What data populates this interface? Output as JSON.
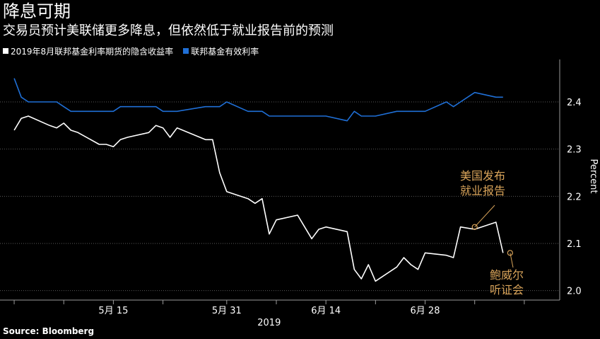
{
  "header": {
    "title": "降息可期",
    "subtitle": "交易员预计美联储更多降息，但依然低于就业报告前的预测"
  },
  "legend": [
    {
      "label": "2019年8月联邦基金利率期货的隐含收益率",
      "color": "#ffffff"
    },
    {
      "label": "联邦基金有效利率",
      "color": "#1f6fd6"
    }
  ],
  "source": "Source: Bloomberg",
  "chart_data": {
    "type": "line",
    "title": "降息可期",
    "subtitle": "交易员预计美联储更多降息，但依然低于就业报告前的预测",
    "x_tick_labels": [
      "5月 15",
      "5月 31",
      "6月 14",
      "6月 28"
    ],
    "x_year_label": "2019",
    "ylabel": "Percent",
    "y_ticks": [
      2.0,
      2.1,
      2.2,
      2.3,
      2.4
    ],
    "ylim": [
      1.98,
      2.49
    ],
    "x": [
      "2019-05-01",
      "2019-05-02",
      "2019-05-03",
      "2019-05-06",
      "2019-05-07",
      "2019-05-08",
      "2019-05-09",
      "2019-05-10",
      "2019-05-13",
      "2019-05-14",
      "2019-05-15",
      "2019-05-16",
      "2019-05-17",
      "2019-05-20",
      "2019-05-21",
      "2019-05-22",
      "2019-05-23",
      "2019-05-24",
      "2019-05-28",
      "2019-05-29",
      "2019-05-30",
      "2019-05-31",
      "2019-06-03",
      "2019-06-04",
      "2019-06-05",
      "2019-06-06",
      "2019-06-07",
      "2019-06-10",
      "2019-06-11",
      "2019-06-12",
      "2019-06-13",
      "2019-06-14",
      "2019-06-17",
      "2019-06-18",
      "2019-06-19",
      "2019-06-20",
      "2019-06-21",
      "2019-06-24",
      "2019-06-25",
      "2019-06-26",
      "2019-06-27",
      "2019-06-28",
      "2019-07-01",
      "2019-07-02",
      "2019-07-03",
      "2019-07-05",
      "2019-07-08",
      "2019-07-09",
      "2019-07-10"
    ],
    "x_domain": [
      "2019-04-29",
      "2019-07-17"
    ],
    "series": [
      {
        "name": "2019年8月联邦基金利率期货的隐含收益率",
        "color": "#ffffff",
        "values": [
          2.34,
          2.365,
          2.37,
          2.35,
          2.345,
          2.355,
          2.34,
          2.335,
          2.31,
          2.31,
          2.305,
          2.32,
          2.325,
          2.335,
          2.35,
          2.345,
          2.325,
          2.345,
          2.32,
          2.32,
          2.25,
          2.21,
          2.195,
          2.185,
          2.195,
          2.12,
          2.15,
          2.16,
          2.135,
          2.11,
          2.13,
          2.135,
          2.125,
          2.045,
          2.025,
          2.055,
          2.02,
          2.05,
          2.07,
          2.055,
          2.045,
          2.08,
          2.075,
          2.07,
          2.135,
          2.13,
          2.145,
          2.08,
          null
        ]
      },
      {
        "name": "联邦基金有效利率",
        "color": "#1f6fd6",
        "values": [
          2.45,
          2.41,
          2.4,
          2.4,
          2.4,
          2.39,
          2.38,
          2.38,
          2.38,
          2.38,
          2.38,
          2.39,
          2.39,
          2.39,
          2.39,
          2.38,
          2.38,
          2.38,
          2.39,
          2.39,
          2.39,
          2.4,
          2.38,
          2.38,
          2.38,
          2.37,
          2.37,
          2.37,
          2.37,
          2.37,
          2.37,
          2.37,
          2.36,
          2.38,
          2.37,
          2.37,
          2.37,
          2.38,
          2.38,
          2.38,
          2.38,
          2.38,
          2.4,
          2.39,
          2.4,
          2.42,
          2.41,
          2.41,
          null
        ]
      }
    ],
    "annotations": [
      {
        "text": [
          "美国发布",
          "就业报告"
        ],
        "date": "2019-07-05",
        "value": 2.135,
        "color": "#d9a45a"
      },
      {
        "text": [
          "鲍威尔",
          "听证会"
        ],
        "date": "2019-07-10",
        "value": 2.08,
        "color": "#d9a45a"
      }
    ],
    "grid": "horizontal dotted",
    "legend_position": "top-left"
  }
}
